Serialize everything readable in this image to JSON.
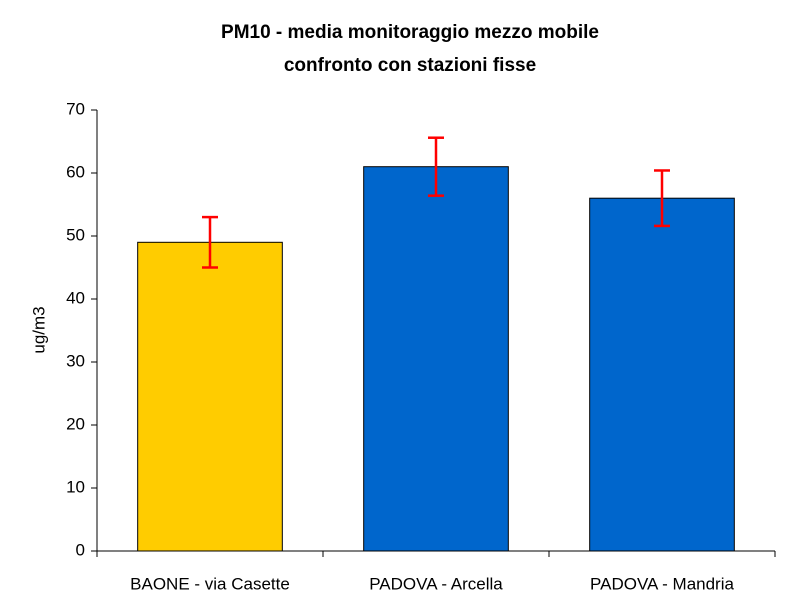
{
  "chart_data": {
    "type": "bar",
    "title": [
      "PM10 - media monitoraggio mezzo mobile",
      "confronto con stazioni fisse"
    ],
    "y_label": "ug/m3",
    "categories": [
      "BAONE - via Casette",
      "PADOVA - Arcella",
      "PADOVA - Mandria"
    ],
    "values": [
      49,
      61,
      56
    ],
    "errors": [
      4,
      4.6,
      4.4
    ],
    "colors": [
      "#ffcc00",
      "#0066cc",
      "#0066cc"
    ],
    "error_color": "#ff0000",
    "ylim": [
      0,
      70
    ],
    "yticks": [
      0,
      10,
      20,
      30,
      40,
      50,
      60,
      70
    ],
    "grid": false
  }
}
